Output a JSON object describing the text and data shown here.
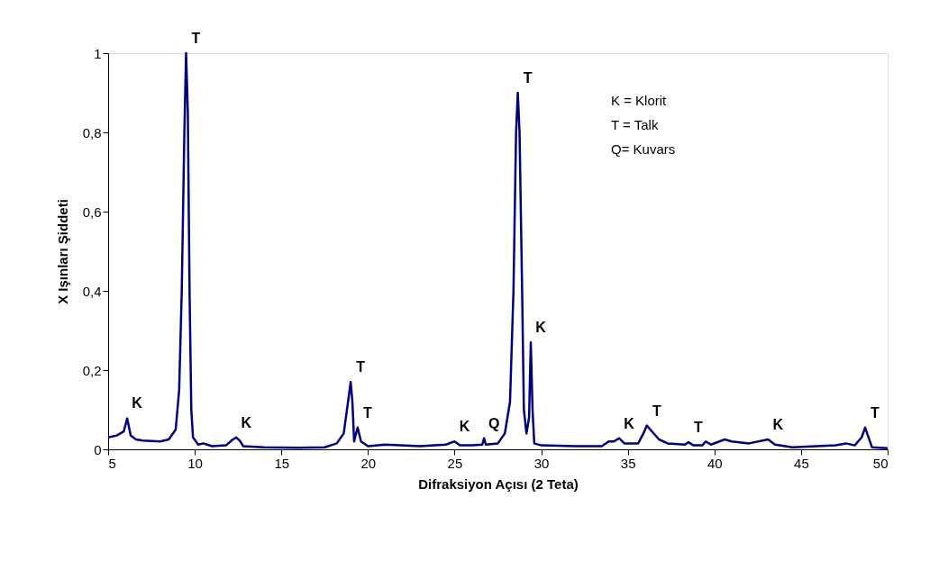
{
  "chart_data": {
    "type": "line",
    "xlabel": "Difraksiyon Açısı (2 Teta)",
    "ylabel": "X Işınları Şiddeti",
    "xlim": [
      5,
      50
    ],
    "ylim": [
      0,
      1
    ],
    "xticks": [
      5,
      10,
      15,
      20,
      25,
      30,
      35,
      40,
      45,
      50
    ],
    "yticks": [
      0,
      {
        "value": 0.2,
        "label": "0,2"
      },
      {
        "value": 0.4,
        "label": "0,4"
      },
      {
        "value": 0.6,
        "label": "0,6"
      },
      {
        "value": 0.8,
        "label": "0,8"
      },
      1
    ],
    "grid": false,
    "marker": "none",
    "line_style": "solid",
    "series": [
      {
        "color": "#00007f",
        "x": [
          5,
          5.5,
          5.9,
          6.1,
          6.3,
          6.6,
          7,
          8,
          8.5,
          8.9,
          9.1,
          9.25,
          9.4,
          9.5,
          9.6,
          9.7,
          9.8,
          9.9,
          10.2,
          10.5,
          11,
          11.8,
          12.2,
          12.4,
          12.6,
          12.8,
          14,
          16,
          17.5,
          18.2,
          18.6,
          18.85,
          19.0,
          19.1,
          19.2,
          19.4,
          19.6,
          20,
          21,
          23,
          24.5,
          25.0,
          25.3,
          26,
          26.6,
          26.7,
          26.8,
          27.5,
          27.9,
          28.2,
          28.4,
          28.55,
          28.65,
          28.75,
          28.9,
          29.0,
          29.15,
          29.3,
          29.4,
          29.5,
          29.6,
          30,
          32,
          33.5,
          33.9,
          34.2,
          34.5,
          34.8,
          35.6,
          35.9,
          36.1,
          36.4,
          36.8,
          37.3,
          38.3,
          38.5,
          38.8,
          39.3,
          39.5,
          39.8,
          40.6,
          41,
          42,
          43.1,
          43.5,
          44.5,
          47,
          47.6,
          48.1,
          48.5,
          48.7,
          48.9,
          49.1,
          50
        ],
        "values": [
          0.03,
          0.035,
          0.045,
          0.078,
          0.035,
          0.025,
          0.022,
          0.02,
          0.025,
          0.05,
          0.15,
          0.4,
          0.8,
          1.0,
          0.85,
          0.4,
          0.1,
          0.03,
          0.012,
          0.015,
          0.008,
          0.01,
          0.025,
          0.03,
          0.022,
          0.008,
          0.005,
          0.004,
          0.005,
          0.015,
          0.04,
          0.12,
          0.17,
          0.12,
          0.02,
          0.055,
          0.02,
          0.008,
          0.012,
          0.008,
          0.012,
          0.02,
          0.01,
          0.01,
          0.012,
          0.028,
          0.012,
          0.015,
          0.04,
          0.12,
          0.4,
          0.8,
          0.9,
          0.8,
          0.4,
          0.1,
          0.04,
          0.08,
          0.27,
          0.1,
          0.015,
          0.01,
          0.008,
          0.008,
          0.02,
          0.02,
          0.028,
          0.015,
          0.015,
          0.04,
          0.06,
          0.045,
          0.025,
          0.015,
          0.012,
          0.018,
          0.01,
          0.01,
          0.02,
          0.012,
          0.025,
          0.02,
          0.015,
          0.025,
          0.012,
          0.005,
          0.01,
          0.015,
          0.01,
          0.03,
          0.055,
          0.03,
          0.005,
          0.003
        ]
      }
    ],
    "annotations": [
      {
        "text": "K",
        "x": 6.1,
        "y": 0.08
      },
      {
        "text": "T",
        "x": 9.5,
        "y": 1.0
      },
      {
        "text": "K",
        "x": 12.4,
        "y": 0.03
      },
      {
        "text": "T",
        "x": 19.0,
        "y": 0.17
      },
      {
        "text": "T",
        "x": 19.4,
        "y": 0.055
      },
      {
        "text": "K",
        "x": 25.0,
        "y": 0.02
      },
      {
        "text": "Q",
        "x": 26.7,
        "y": 0.028
      },
      {
        "text": "T",
        "x": 28.65,
        "y": 0.9
      },
      {
        "text": "K",
        "x": 29.4,
        "y": 0.27
      },
      {
        "text": "K",
        "x": 34.5,
        "y": 0.028
      },
      {
        "text": "T",
        "x": 36.1,
        "y": 0.06
      },
      {
        "text": "T",
        "x": 38.5,
        "y": 0.018
      },
      {
        "text": "K",
        "x": 43.1,
        "y": 0.025
      },
      {
        "text": "T",
        "x": 48.7,
        "y": 0.055
      },
      "K = Klorit",
      "T = Talk",
      "Q= Kuvars"
    ]
  }
}
